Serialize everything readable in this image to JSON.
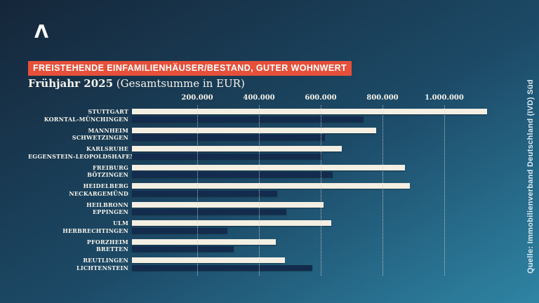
{
  "brand": {
    "logo_glyph": "Λ"
  },
  "header": {
    "banner_title": "FREISTEHENDE EINFAMILIENHÄUSER/BESTAND, GUTER WOHNWERT",
    "subtitle_period": "Frühjahr 2025",
    "subtitle_unit": " (Gesamtsumme in EUR)"
  },
  "source": {
    "label": "Quelle: Immobilienverband Deutschland (IVD) Süd"
  },
  "colors": {
    "banner_bg": "#e6503a",
    "bar_primary": "#f4efe3",
    "bar_secondary": "#132b4d",
    "gridline": "#d2d4d0",
    "background_top_left": "#152639",
    "background_bottom_right": "#2f84a4",
    "text": "#ffffff"
  },
  "chart_data": {
    "type": "bar",
    "orientation": "horizontal",
    "title": "FREISTEHENDE EINFAMILIENHÄUSER/BESTAND, GUTER WOHNWERT",
    "subtitle": "Frühjahr 2025 (Gesamtsumme in EUR)",
    "unit": "EUR",
    "xlim": [
      0,
      1200000
    ],
    "grid": "vertical-dotted",
    "legend": "none",
    "ticks": [
      {
        "value": 200000,
        "label": "200.000"
      },
      {
        "value": 400000,
        "label": "400.000"
      },
      {
        "value": 600000,
        "label": "600.000"
      },
      {
        "value": 800000,
        "label": "800.000"
      },
      {
        "value": 1000000,
        "label": "1.000.000"
      }
    ],
    "bar_colors": {
      "first_of_pair": "#f4efe3",
      "second_of_pair": "#132b4d"
    },
    "groups": [
      {
        "labels": [
          "STUTTGART",
          "KORNTAL-MÜNCHINGEN"
        ],
        "values": [
          1150000,
          750000
        ]
      },
      {
        "labels": [
          "MANNHEIM",
          "SCHWETZINGEN"
        ],
        "values": [
          790000,
          625000
        ]
      },
      {
        "labels": [
          "KARLSRUHE",
          "EGGENSTEIN-LEOPOLDSHAFEN"
        ],
        "values": [
          680000,
          615000
        ]
      },
      {
        "labels": [
          "FREIBURG",
          "BÖTZINGEN"
        ],
        "values": [
          885000,
          650000
        ]
      },
      {
        "labels": [
          "HEIDELBERG",
          "NECKARGEMÜND"
        ],
        "values": [
          900000,
          470000
        ]
      },
      {
        "labels": [
          "HEILBRONN",
          "EPPINGEN"
        ],
        "values": [
          620000,
          500000
        ]
      },
      {
        "labels": [
          "ULM",
          "HERBRECHTINGEN"
        ],
        "values": [
          645000,
          310000
        ]
      },
      {
        "labels": [
          "PFORZHEIM",
          "BRETTEN"
        ],
        "values": [
          465000,
          330000
        ]
      },
      {
        "labels": [
          "REUTLINGEN",
          "LICHTENSTEIN"
        ],
        "values": [
          495000,
          585000
        ]
      }
    ]
  }
}
